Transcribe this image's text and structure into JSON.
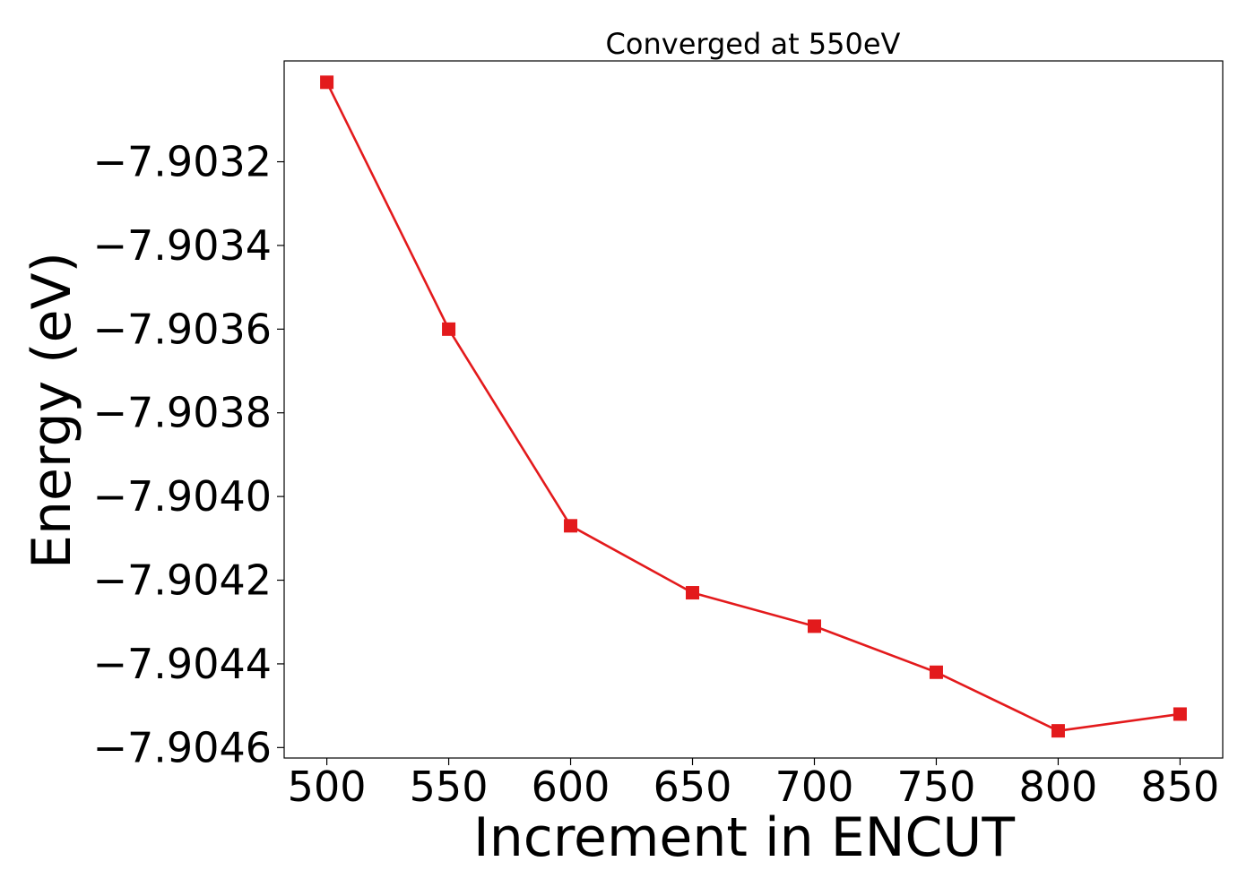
{
  "chart_data": {
    "type": "line",
    "title": "Converged at 550eV",
    "xlabel": "Increment in ENCUT",
    "ylabel": "Energy (eV)",
    "x": [
      500,
      550,
      600,
      650,
      700,
      750,
      800,
      850
    ],
    "series": [
      {
        "values": [
          -7.90301,
          -7.9036,
          -7.90407,
          -7.90423,
          -7.90431,
          -7.90442,
          -7.90456,
          -7.90452
        ],
        "color": "#e31a1c",
        "marker": "square"
      }
    ],
    "xticks": [
      500,
      550,
      600,
      650,
      700,
      750,
      800,
      850
    ],
    "xtick_labels": [
      "500",
      "550",
      "600",
      "650",
      "700",
      "750",
      "800",
      "850"
    ],
    "yticks": [
      -7.9032,
      -7.9034,
      -7.9036,
      -7.9038,
      -7.904,
      -7.9042,
      -7.9044,
      -7.9046
    ],
    "ytick_labels": [
      "−7.9032",
      "−7.9034",
      "−7.9036",
      "−7.9038",
      "−7.9040",
      "−7.9042",
      "−7.9044",
      "−7.9046"
    ],
    "xlim": [
      482.5,
      867.5
    ],
    "ylim": [
      -7.904625,
      -7.902959
    ],
    "grid": false,
    "legend": "none"
  }
}
